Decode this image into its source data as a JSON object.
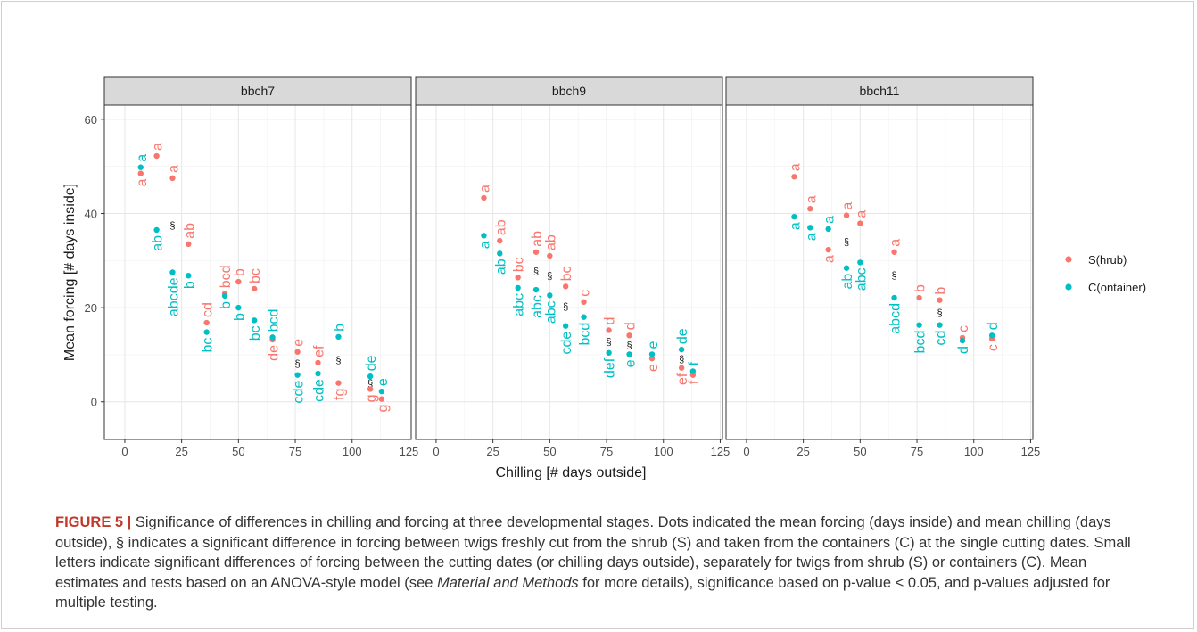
{
  "chart_data": {
    "type": "scatter",
    "xlabel": "Chilling [# days outside]",
    "ylabel": "Mean forcing [# days inside]",
    "xlim": [
      -9,
      126
    ],
    "ylim": [
      -8,
      63
    ],
    "x_ticks": [
      0,
      25,
      50,
      75,
      100,
      125
    ],
    "y_ticks": [
      0,
      20,
      40,
      60
    ],
    "grid": true,
    "legend_position": "right",
    "legend": [
      {
        "name": "S(hrub)",
        "color": "#F8766D"
      },
      {
        "name": "C(ontainer)",
        "color": "#00BFC4"
      }
    ],
    "panels": [
      {
        "title": "bbch7",
        "series": [
          {
            "name": "S(hrub)",
            "color": "#F8766D",
            "points": [
              {
                "x": 7,
                "y": 48.5,
                "letter": "a"
              },
              {
                "x": 14,
                "y": 52.2,
                "letter": "a"
              },
              {
                "x": 21,
                "y": 47.5,
                "letter": "a"
              },
              {
                "x": 28,
                "y": 33.5,
                "letter": "ab"
              },
              {
                "x": 36,
                "y": 16.8,
                "letter": "cd"
              },
              {
                "x": 44,
                "y": 23,
                "letter": "bcd"
              },
              {
                "x": 50,
                "y": 25.5,
                "letter": "b"
              },
              {
                "x": 57,
                "y": 24,
                "letter": "bc"
              },
              {
                "x": 65,
                "y": 13.2,
                "letter": "de"
              },
              {
                "x": 76,
                "y": 10.6,
                "letter": "e"
              },
              {
                "x": 85,
                "y": 8.3,
                "letter": "ef"
              },
              {
                "x": 94,
                "y": 4,
                "letter": "fg"
              },
              {
                "x": 108,
                "y": 2.7,
                "letter": "g"
              },
              {
                "x": 113,
                "y": 0.6,
                "letter": "g"
              }
            ]
          },
          {
            "name": "C(ontainer)",
            "color": "#00BFC4",
            "points": [
              {
                "x": 7,
                "y": 49.8,
                "letter": "a"
              },
              {
                "x": 14,
                "y": 36.5,
                "letter": "ab"
              },
              {
                "x": 21,
                "y": 27.5,
                "letter": "abcde"
              },
              {
                "x": 28,
                "y": 26.8,
                "letter": "b"
              },
              {
                "x": 36,
                "y": 14.8,
                "letter": "bc"
              },
              {
                "x": 44,
                "y": 22.5,
                "letter": "b"
              },
              {
                "x": 50,
                "y": 20,
                "letter": "b"
              },
              {
                "x": 57,
                "y": 17.3,
                "letter": "bc"
              },
              {
                "x": 65,
                "y": 13.7,
                "letter": "bcd"
              },
              {
                "x": 76,
                "y": 5.7,
                "letter": "cde"
              },
              {
                "x": 85,
                "y": 6,
                "letter": "cde"
              },
              {
                "x": 94,
                "y": 13.8,
                "letter": "b"
              },
              {
                "x": 108,
                "y": 5.4,
                "letter": "de"
              },
              {
                "x": 113,
                "y": 2.2,
                "letter": "e"
              }
            ]
          }
        ],
        "significance_x": [
          21,
          76,
          94,
          108
        ]
      },
      {
        "title": "bbch9",
        "series": [
          {
            "name": "S(hrub)",
            "color": "#F8766D",
            "points": [
              {
                "x": 21,
                "y": 43.3,
                "letter": "a"
              },
              {
                "x": 28,
                "y": 34.2,
                "letter": "ab"
              },
              {
                "x": 36,
                "y": 26.4,
                "letter": "bc"
              },
              {
                "x": 44,
                "y": 31.8,
                "letter": "ab"
              },
              {
                "x": 50,
                "y": 31,
                "letter": "ab"
              },
              {
                "x": 57,
                "y": 24.5,
                "letter": "bc"
              },
              {
                "x": 65,
                "y": 21.2,
                "letter": "c"
              },
              {
                "x": 76,
                "y": 15.2,
                "letter": "d"
              },
              {
                "x": 85,
                "y": 14.1,
                "letter": "d"
              },
              {
                "x": 95,
                "y": 9.2,
                "letter": "e"
              },
              {
                "x": 108,
                "y": 7.2,
                "letter": "ef"
              },
              {
                "x": 113,
                "y": 5.7,
                "letter": "f"
              }
            ]
          },
          {
            "name": "C(ontainer)",
            "color": "#00BFC4",
            "points": [
              {
                "x": 21,
                "y": 35.3,
                "letter": "a"
              },
              {
                "x": 28,
                "y": 31.5,
                "letter": "ab"
              },
              {
                "x": 36,
                "y": 24.2,
                "letter": "abc"
              },
              {
                "x": 44,
                "y": 23.8,
                "letter": "abc"
              },
              {
                "x": 50,
                "y": 22.6,
                "letter": "abc"
              },
              {
                "x": 57,
                "y": 16.1,
                "letter": "cde"
              },
              {
                "x": 65,
                "y": 18,
                "letter": "bcd"
              },
              {
                "x": 76,
                "y": 10.4,
                "letter": "def"
              },
              {
                "x": 85,
                "y": 10.1,
                "letter": "e"
              },
              {
                "x": 95,
                "y": 10.1,
                "letter": "e"
              },
              {
                "x": 108,
                "y": 11.1,
                "letter": "de"
              },
              {
                "x": 113,
                "y": 6.5,
                "letter": "f"
              }
            ]
          }
        ],
        "significance_x": [
          44,
          50,
          57,
          76,
          85,
          95,
          108,
          113
        ]
      },
      {
        "title": "bbch11",
        "series": [
          {
            "name": "S(hrub)",
            "color": "#F8766D",
            "points": [
              {
                "x": 21,
                "y": 47.8,
                "letter": "a"
              },
              {
                "x": 28,
                "y": 41,
                "letter": "a"
              },
              {
                "x": 36,
                "y": 32.3,
                "letter": "a"
              },
              {
                "x": 44,
                "y": 39.6,
                "letter": "a"
              },
              {
                "x": 50,
                "y": 37.9,
                "letter": "a"
              },
              {
                "x": 65,
                "y": 31.8,
                "letter": "a"
              },
              {
                "x": 76,
                "y": 22.1,
                "letter": "b"
              },
              {
                "x": 85,
                "y": 21.6,
                "letter": "b"
              },
              {
                "x": 95,
                "y": 13.6,
                "letter": "c"
              },
              {
                "x": 108,
                "y": 13.4,
                "letter": "c"
              }
            ]
          },
          {
            "name": "C(ontainer)",
            "color": "#00BFC4",
            "points": [
              {
                "x": 21,
                "y": 39.3,
                "letter": "a"
              },
              {
                "x": 28,
                "y": 37,
                "letter": "a"
              },
              {
                "x": 36,
                "y": 36.7,
                "letter": "a"
              },
              {
                "x": 44,
                "y": 28.4,
                "letter": "ab"
              },
              {
                "x": 50,
                "y": 29.6,
                "letter": "abc"
              },
              {
                "x": 65,
                "y": 22.1,
                "letter": "abcd"
              },
              {
                "x": 76,
                "y": 16.3,
                "letter": "bcd"
              },
              {
                "x": 85,
                "y": 16.3,
                "letter": "cd"
              },
              {
                "x": 95,
                "y": 13,
                "letter": "d"
              },
              {
                "x": 108,
                "y": 14.1,
                "letter": "d"
              }
            ]
          }
        ],
        "significance_x": [
          44,
          65,
          85
        ]
      }
    ]
  },
  "significance_symbol": "§",
  "caption": {
    "label": "FIGURE 5 |",
    "text_1": " Significance of differences in chilling and forcing at three developmental stages. Dots indicated the mean forcing (days inside) and mean chilling (days outside), § indicates a significant difference in forcing between twigs freshly cut from the shrub (S) and taken from the containers (C) at the single cutting dates. Small letters indicate significant differences of forcing between the cutting dates (or chilling days outside), separately for twigs from shrub (S) or containers (C). Mean estimates and tests based on an ANOVA-style model (see ",
    "italic": "Material and Methods",
    "text_2": " for more details), significance based on p-value < 0.05, and p-values adjusted for multiple testing."
  }
}
